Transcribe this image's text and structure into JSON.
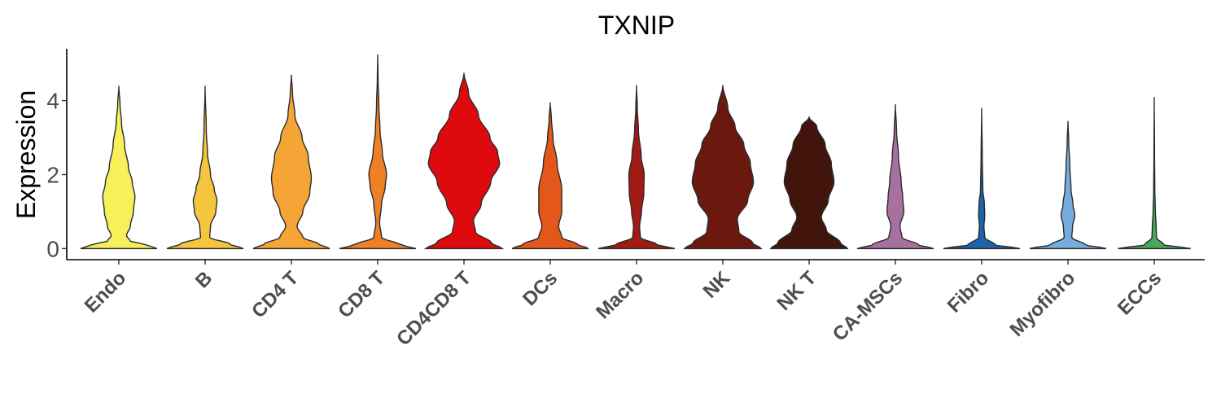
{
  "chart_data": {
    "type": "violin",
    "title": "TXNIP",
    "xlabel": "",
    "ylabel": "Expression",
    "ylim": [
      -0.3,
      5.4
    ],
    "yticks": [
      0,
      2,
      4
    ],
    "ytick_labels": [
      "0",
      "2",
      "4"
    ],
    "grid": false,
    "legend": "none",
    "categories": [
      "Endo",
      "B",
      "CD4 T",
      "CD8 T",
      "CD4CD8 T",
      "DCs",
      "Macro",
      "NK",
      "NK T",
      "CA-MSCs",
      "Fibro",
      "Myofibro",
      "ECCs"
    ],
    "colors": [
      "#F7F05A",
      "#F5C53E",
      "#F4A536",
      "#EE8026",
      "#DE0A0E",
      "#E4571B",
      "#A11A14",
      "#6B190F",
      "#42150C",
      "#A8709F",
      "#1B63AA",
      "#75ACDC",
      "#49A856"
    ],
    "max_values": [
      4.4,
      4.4,
      4.7,
      5.25,
      4.75,
      3.95,
      4.42,
      4.42,
      3.55,
      3.9,
      3.8,
      3.45,
      4.1
    ],
    "density_profiles": [
      [
        [
          0,
          1.0
        ],
        [
          0.1,
          0.72
        ],
        [
          0.2,
          0.3
        ],
        [
          0.35,
          0.2
        ],
        [
          0.6,
          0.3
        ],
        [
          1.0,
          0.38
        ],
        [
          1.4,
          0.42
        ],
        [
          1.8,
          0.35
        ],
        [
          2.2,
          0.25
        ],
        [
          2.8,
          0.15
        ],
        [
          3.4,
          0.07
        ],
        [
          3.9,
          0.03
        ],
        [
          4.4,
          0
        ]
      ],
      [
        [
          0,
          1.0
        ],
        [
          0.12,
          0.65
        ],
        [
          0.3,
          0.12
        ],
        [
          0.6,
          0.14
        ],
        [
          1.0,
          0.28
        ],
        [
          1.3,
          0.31
        ],
        [
          1.6,
          0.24
        ],
        [
          2.0,
          0.14
        ],
        [
          2.6,
          0.06
        ],
        [
          3.2,
          0.03
        ],
        [
          4.4,
          0
        ]
      ],
      [
        [
          0,
          1.0
        ],
        [
          0.12,
          0.72
        ],
        [
          0.3,
          0.3
        ],
        [
          0.6,
          0.15
        ],
        [
          1.0,
          0.3
        ],
        [
          1.5,
          0.48
        ],
        [
          1.9,
          0.52
        ],
        [
          2.5,
          0.44
        ],
        [
          3.0,
          0.28
        ],
        [
          3.6,
          0.09
        ],
        [
          4.2,
          0.03
        ],
        [
          4.7,
          0
        ]
      ],
      [
        [
          0,
          1.0
        ],
        [
          0.1,
          0.6
        ],
        [
          0.3,
          0.1
        ],
        [
          0.7,
          0.05
        ],
        [
          1.2,
          0.1
        ],
        [
          1.7,
          0.2
        ],
        [
          2.0,
          0.23
        ],
        [
          2.6,
          0.12
        ],
        [
          3.2,
          0.06
        ],
        [
          3.9,
          0.03
        ],
        [
          4.6,
          0.01
        ],
        [
          5.25,
          0
        ]
      ],
      [
        [
          0,
          1.0
        ],
        [
          0.15,
          0.72
        ],
        [
          0.45,
          0.3
        ],
        [
          0.75,
          0.25
        ],
        [
          1.2,
          0.45
        ],
        [
          1.8,
          0.7
        ],
        [
          2.3,
          0.93
        ],
        [
          2.6,
          0.88
        ],
        [
          3.0,
          0.68
        ],
        [
          3.6,
          0.38
        ],
        [
          4.2,
          0.12
        ],
        [
          4.75,
          0
        ]
      ],
      [
        [
          0,
          1.0
        ],
        [
          0.12,
          0.7
        ],
        [
          0.3,
          0.3
        ],
        [
          0.6,
          0.22
        ],
        [
          1.0,
          0.3
        ],
        [
          1.6,
          0.3
        ],
        [
          2.3,
          0.18
        ],
        [
          3.0,
          0.07
        ],
        [
          3.5,
          0.03
        ],
        [
          3.95,
          0
        ]
      ],
      [
        [
          0,
          1.0
        ],
        [
          0.1,
          0.55
        ],
        [
          0.3,
          0.1
        ],
        [
          0.6,
          0.08
        ],
        [
          1.0,
          0.13
        ],
        [
          1.5,
          0.19
        ],
        [
          2.0,
          0.2
        ],
        [
          2.5,
          0.12
        ],
        [
          3.2,
          0.05
        ],
        [
          3.8,
          0.02
        ],
        [
          4.42,
          0
        ]
      ],
      [
        [
          0,
          1.0
        ],
        [
          0.15,
          0.78
        ],
        [
          0.45,
          0.42
        ],
        [
          0.8,
          0.38
        ],
        [
          1.3,
          0.65
        ],
        [
          1.8,
          0.8
        ],
        [
          2.3,
          0.72
        ],
        [
          2.8,
          0.55
        ],
        [
          3.3,
          0.32
        ],
        [
          3.8,
          0.13
        ],
        [
          4.42,
          0
        ]
      ],
      [
        [
          0,
          1.0
        ],
        [
          0.15,
          0.82
        ],
        [
          0.5,
          0.45
        ],
        [
          0.85,
          0.32
        ],
        [
          1.3,
          0.5
        ],
        [
          1.8,
          0.65
        ],
        [
          2.3,
          0.58
        ],
        [
          2.8,
          0.42
        ],
        [
          3.3,
          0.2
        ],
        [
          3.55,
          0
        ]
      ],
      [
        [
          0,
          1.0
        ],
        [
          0.1,
          0.6
        ],
        [
          0.3,
          0.17
        ],
        [
          0.6,
          0.12
        ],
        [
          1.0,
          0.22
        ],
        [
          1.4,
          0.19
        ],
        [
          1.8,
          0.15
        ],
        [
          2.5,
          0.08
        ],
        [
          3.2,
          0.03
        ],
        [
          3.9,
          0
        ]
      ],
      [
        [
          0,
          1.0
        ],
        [
          0.1,
          0.35
        ],
        [
          0.3,
          0.08
        ],
        [
          0.6,
          0.06
        ],
        [
          0.9,
          0.08
        ],
        [
          1.2,
          0.07
        ],
        [
          1.6,
          0.03
        ],
        [
          2.5,
          0.015
        ],
        [
          3.8,
          0
        ]
      ],
      [
        [
          0,
          1.0
        ],
        [
          0.1,
          0.45
        ],
        [
          0.3,
          0.1
        ],
        [
          0.6,
          0.12
        ],
        [
          0.9,
          0.18
        ],
        [
          1.2,
          0.13
        ],
        [
          1.6,
          0.08
        ],
        [
          2.2,
          0.05
        ],
        [
          2.9,
          0.02
        ],
        [
          3.45,
          0
        ]
      ],
      [
        [
          0,
          0.95
        ],
        [
          0.1,
          0.25
        ],
        [
          0.3,
          0.06
        ],
        [
          0.6,
          0.05
        ],
        [
          1.0,
          0.03
        ],
        [
          1.6,
          0.015
        ],
        [
          2.5,
          0.008
        ],
        [
          4.1,
          0
        ]
      ]
    ]
  }
}
